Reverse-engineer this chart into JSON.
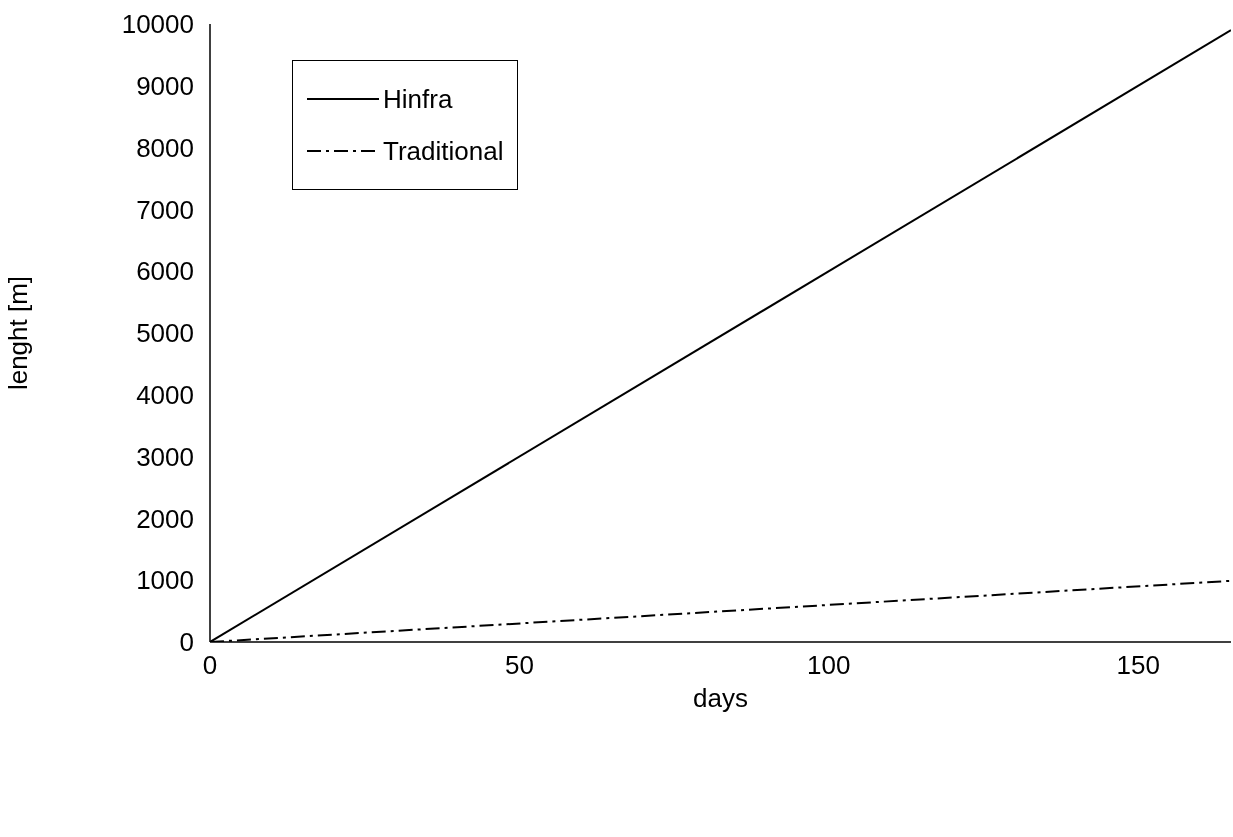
{
  "chart_data": {
    "type": "line",
    "xlabel": "days",
    "ylabel": "lenght [m]",
    "x": [
      0,
      165
    ],
    "series": [
      {
        "name": "Hinfra",
        "color": "#000000",
        "values": [
          0,
          9900
        ],
        "line_style": "solid"
      },
      {
        "name": "Traditional",
        "color": "#000000",
        "values": [
          0,
          990
        ],
        "line_style": "dashdot"
      }
    ],
    "xlim": [
      0,
      165
    ],
    "xticks": [
      0,
      50,
      100,
      150
    ],
    "ylim": [
      0,
      10000
    ],
    "yticks": [
      0,
      1000,
      2000,
      3000,
      4000,
      5000,
      6000,
      7000,
      8000,
      9000,
      10000
    ],
    "grid": false,
    "legend": "top left",
    "marker": "none"
  }
}
